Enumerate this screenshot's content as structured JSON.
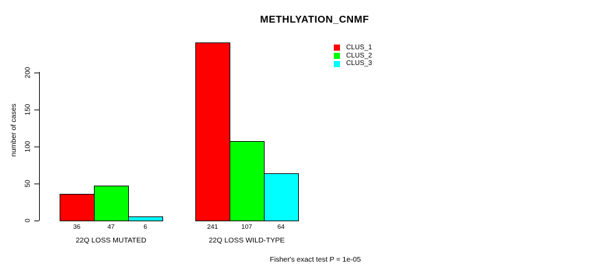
{
  "chart_data": {
    "type": "bar",
    "title": "METHLYATION_CNMF",
    "xlabel": "",
    "ylabel": "number of cases",
    "footer": "Fisher's exact test P = 1e-05",
    "categories": [
      "22Q LOSS MUTATED",
      "22Q LOSS WILD-TYPE"
    ],
    "series": [
      {
        "name": "CLUS_1",
        "color": "#ff0000",
        "values": [
          36,
          241
        ]
      },
      {
        "name": "CLUS_2",
        "color": "#00ff00",
        "values": [
          47,
          107
        ]
      },
      {
        "name": "CLUS_3",
        "color": "#00ffff",
        "values": [
          6,
          64
        ]
      }
    ],
    "bar_value_labels": [
      [
        "36",
        "47",
        "6"
      ],
      [
        "241",
        "107",
        "64"
      ]
    ],
    "yticks": [
      0,
      50,
      100,
      150,
      200
    ],
    "ylim": [
      0,
      200
    ],
    "grid": false,
    "legend_position": "top-right",
    "bar_border_color": "#000000",
    "background_color": "#ffffff"
  }
}
